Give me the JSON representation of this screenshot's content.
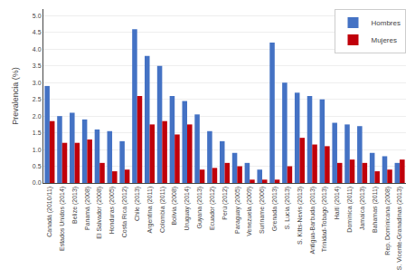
{
  "chart_data": {
    "type": "bar",
    "categories": [
      "Canadá (2010/11)",
      "Estados Unidos (2014)",
      "Belize (2013)",
      "Panamá (2008)",
      "El Salvador (2008)",
      "Honduras (2005)",
      "Costa Rica (2012)",
      "Chile (2013)",
      "Argentina (2011)",
      "Colombia (2011)",
      "Bolivia (2008)",
      "Uruguay (2014)",
      "Guyana (2013)",
      "Ecuador (2012)",
      "Perú (2012)",
      "Paraguay (2005)",
      "Venezuela (2009)",
      "Suriname (2006)",
      "Grenada (2013)",
      "S. Lucia (2013)",
      "S. Kitts-Nevis (2013)",
      "Antigua-Barbuda (2013)",
      "Trinidad-Tobago (2013)",
      "Haití (2014)",
      "Dominica (2011)",
      "Jamaica (2013)",
      "Bahamas (2011)",
      "Rep. Dominicana (2008)",
      "S. Vicente-Granadinas (2013)"
    ],
    "series": [
      {
        "name": "Hombres",
        "color": "#4472C4",
        "values": [
          2.9,
          2.0,
          2.1,
          1.9,
          1.6,
          1.55,
          1.25,
          4.6,
          3.8,
          3.5,
          2.6,
          2.45,
          2.05,
          1.55,
          1.25,
          0.9,
          0.6,
          0.4,
          4.2,
          3.0,
          2.7,
          2.6,
          2.5,
          1.8,
          1.75,
          1.7,
          0.9,
          0.8,
          0.6
        ]
      },
      {
        "name": "Mujeres",
        "color": "#C0000A",
        "values": [
          1.85,
          1.2,
          1.2,
          1.3,
          0.6,
          0.35,
          0.4,
          2.6,
          1.75,
          1.85,
          1.45,
          1.75,
          0.4,
          0.45,
          0.6,
          0.5,
          0.1,
          0.1,
          0.1,
          0.5,
          1.35,
          1.15,
          1.1,
          0.6,
          0.7,
          0.6,
          0.35,
          0.4,
          0.7
        ]
      }
    ],
    "ylabel": "Prevalencia (%)",
    "ylim": [
      0,
      5.2
    ],
    "yticks": [
      {
        "value": 0,
        "label": "0.0"
      },
      0.5,
      {
        "value": 1.0,
        "label": "1.0"
      },
      1.5,
      {
        "value": 2.0,
        "label": "2.0"
      },
      2.5,
      {
        "value": 3.0,
        "label": "3.0"
      },
      3.5,
      {
        "value": 4.0,
        "label": "4.0"
      },
      4.5,
      {
        "value": 5.0,
        "label": "5.0"
      }
    ],
    "grid": true,
    "legend": "upper right"
  }
}
